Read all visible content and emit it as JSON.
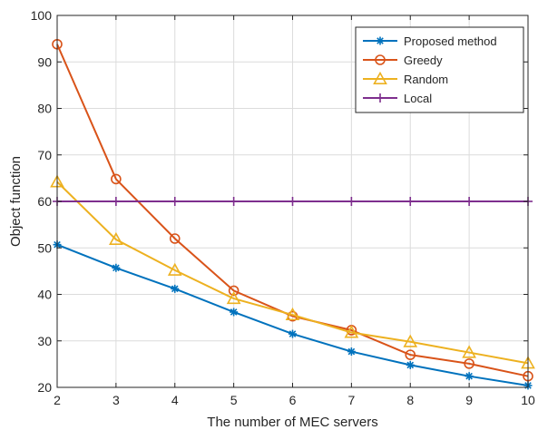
{
  "chart_data": {
    "type": "line",
    "title": "",
    "xlabel": "The number of MEC servers",
    "ylabel": "Object function",
    "x": [
      2,
      3,
      4,
      5,
      6,
      7,
      8,
      9,
      10
    ],
    "xlim": [
      2,
      10
    ],
    "ylim": [
      20,
      100
    ],
    "xticks": [
      2,
      3,
      4,
      5,
      6,
      7,
      8,
      9,
      10
    ],
    "yticks": [
      20,
      30,
      40,
      50,
      60,
      70,
      80,
      90,
      100
    ],
    "grid": true,
    "legend_position": "top-right",
    "series": [
      {
        "name": "Proposed method",
        "marker": "asterisk",
        "color": "#0072BD",
        "values": [
          50.7,
          45.7,
          41.2,
          36.2,
          31.5,
          27.7,
          24.8,
          22.4,
          20.4
        ]
      },
      {
        "name": "Greedy",
        "marker": "circle",
        "color": "#D95319",
        "values": [
          93.8,
          64.8,
          52.0,
          40.8,
          35.3,
          32.3,
          27.0,
          25.1,
          22.4
        ]
      },
      {
        "name": "Random",
        "marker": "triangle",
        "color": "#EDB120",
        "values": [
          64.2,
          51.8,
          45.2,
          39.1,
          35.6,
          31.8,
          29.8,
          27.5,
          25.2
        ]
      },
      {
        "name": "Local",
        "marker": "plus",
        "color": "#7E2F8E",
        "values": [
          60,
          60,
          60,
          60,
          60,
          60,
          60,
          60,
          60
        ]
      }
    ]
  }
}
